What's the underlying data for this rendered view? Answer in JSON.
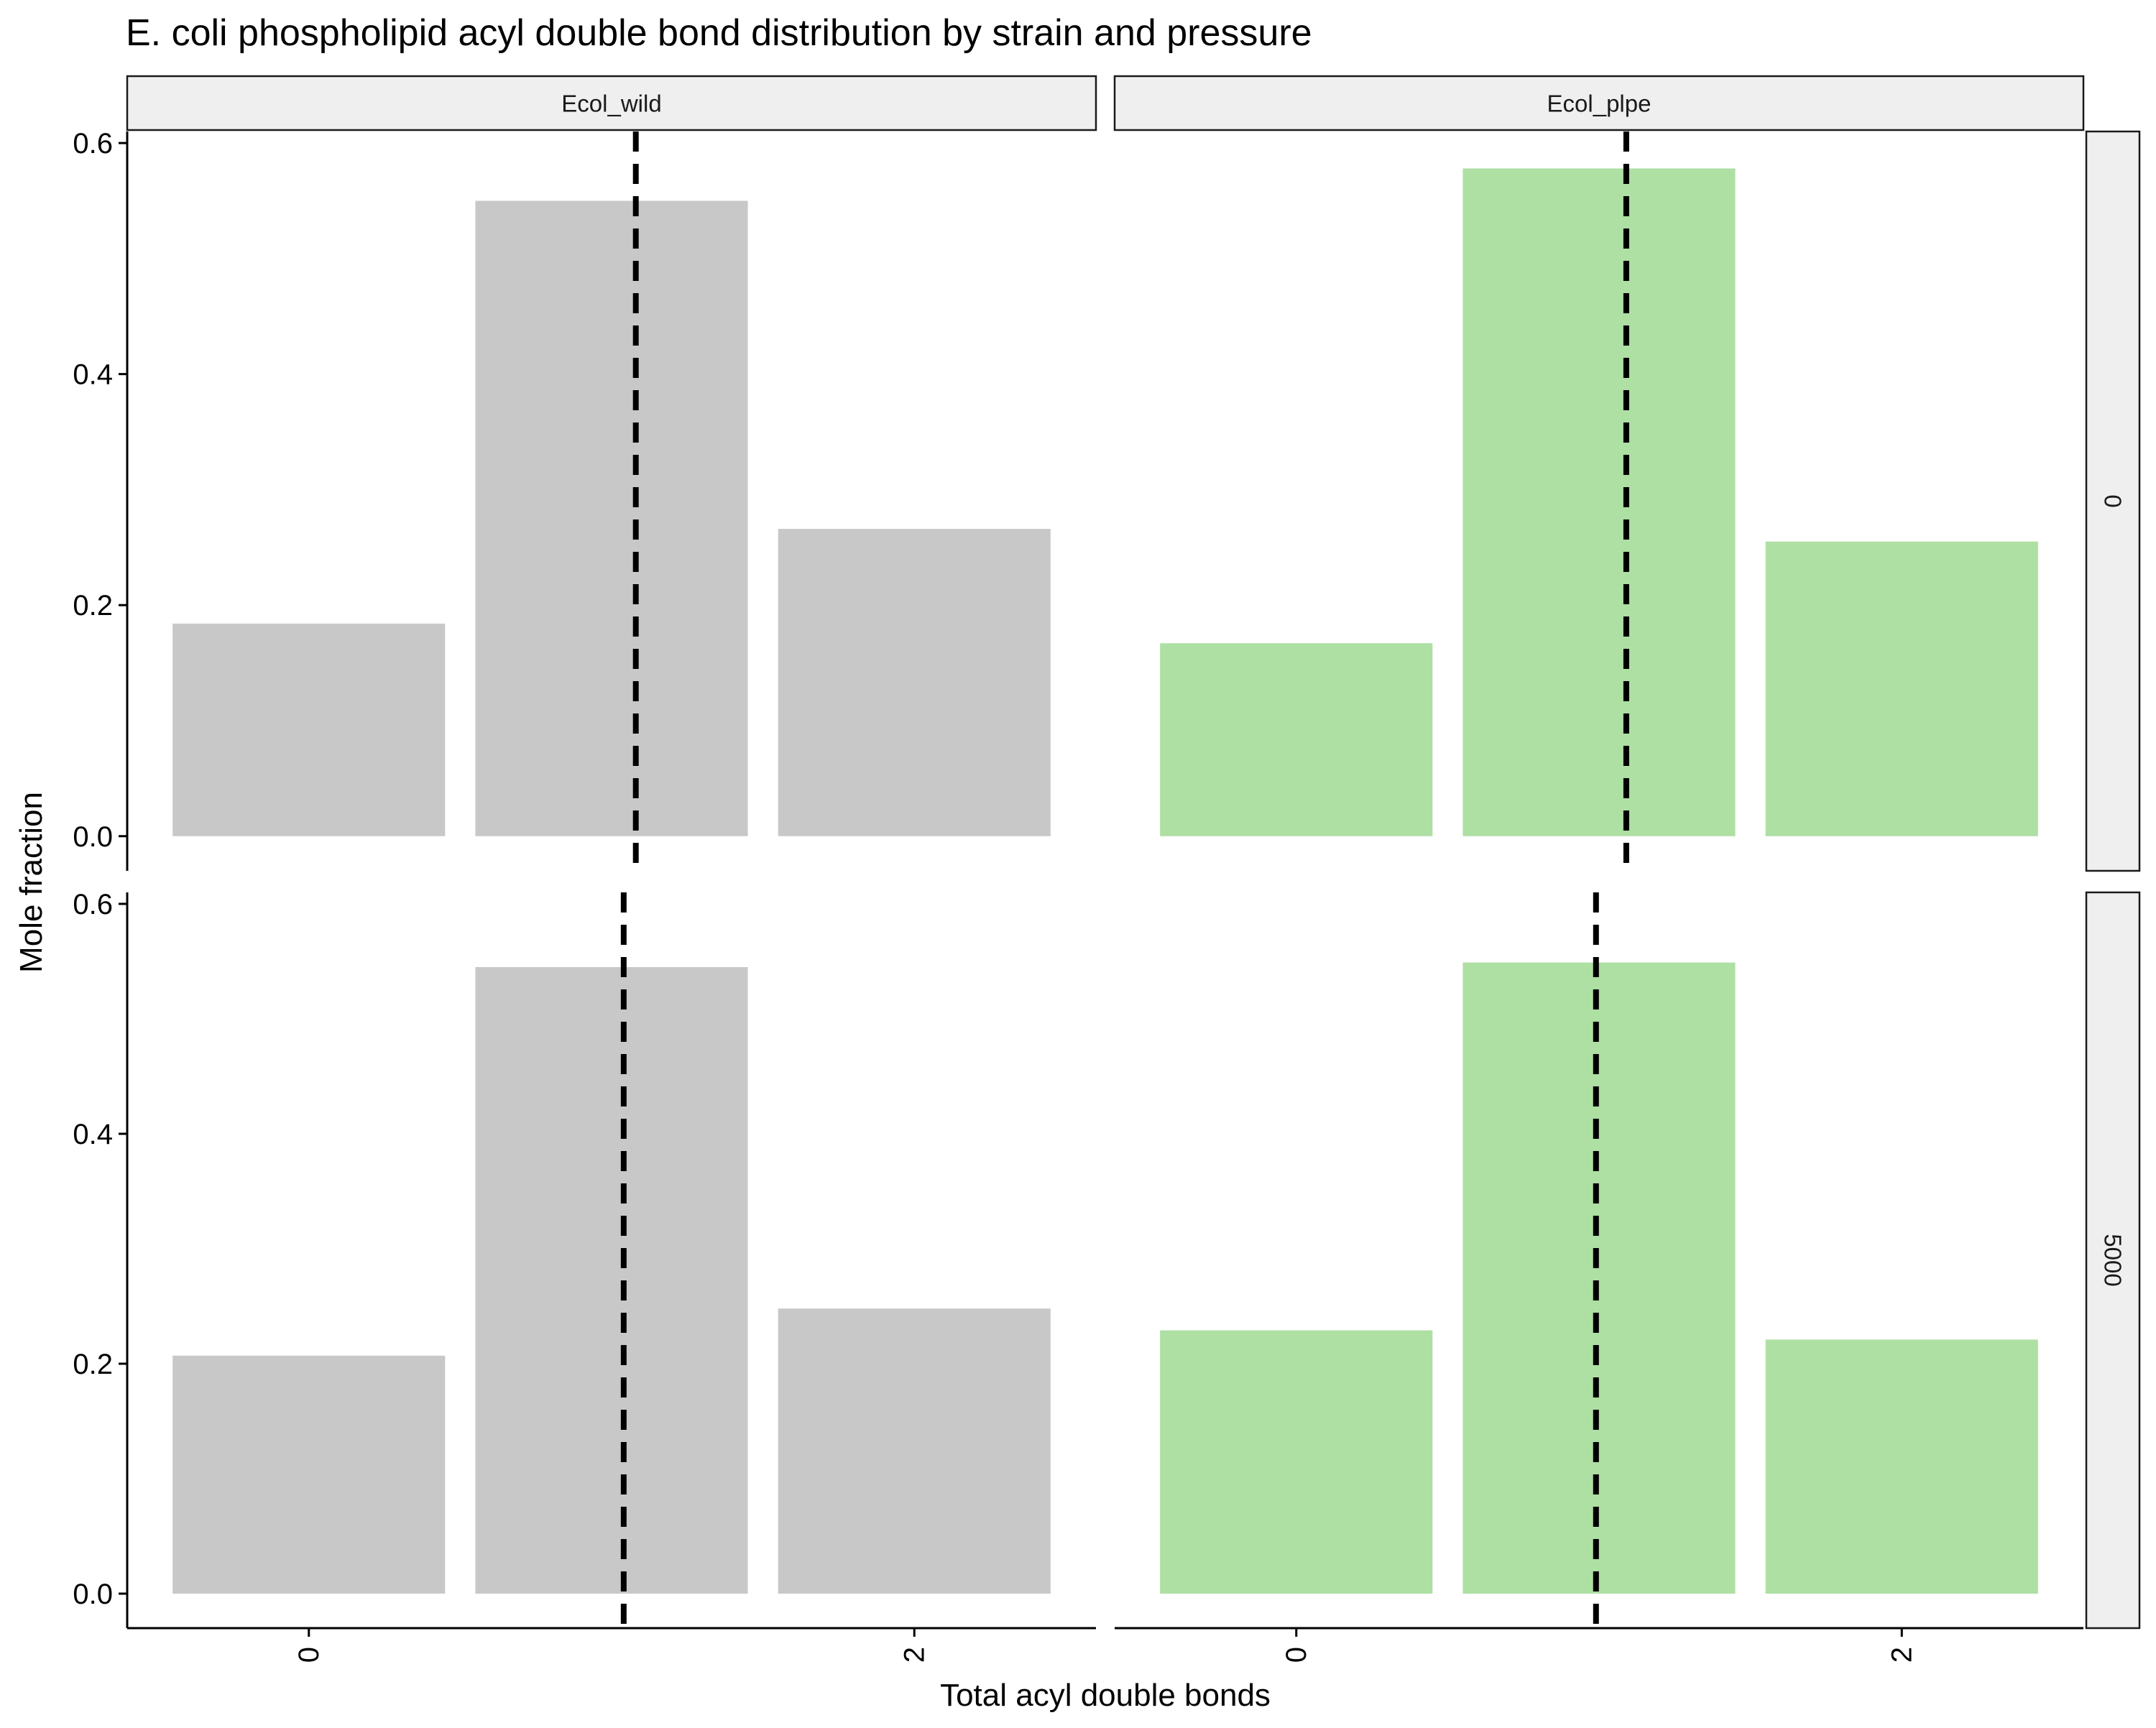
{
  "chart_data": {
    "type": "bar",
    "title": "E. coli phospholipid acyl double bond distribution by strain and pressure",
    "xlabel": "Total acyl double bonds",
    "ylabel": "Mole fraction",
    "ylim": [
      -0.03,
      0.61
    ],
    "y_ticks": [
      "0.0",
      "0.2",
      "0.4",
      "0.6"
    ],
    "x_ticks": [
      "0",
      "2"
    ],
    "x_categories": [
      0,
      1,
      2
    ],
    "column_facets": [
      "Ecol_wild",
      "Ecol_plpe"
    ],
    "row_facets": [
      "0",
      "5000"
    ],
    "colors": {
      "Ecol_wild": "#c8c8c8",
      "Ecol_plpe": "#aedfa3",
      "mean_line": "#000000",
      "strip_fill": "#efefef"
    },
    "panels": [
      {
        "strain": "Ecol_wild",
        "pressure": "0",
        "values": [
          0.184,
          0.55,
          0.266
        ],
        "mean_line_x": 1.08
      },
      {
        "strain": "Ecol_plpe",
        "pressure": "0",
        "values": [
          0.167,
          0.578,
          0.255
        ],
        "mean_line_x": 1.09
      },
      {
        "strain": "Ecol_wild",
        "pressure": "5000",
        "values": [
          0.207,
          0.545,
          0.248
        ],
        "mean_line_x": 1.04
      },
      {
        "strain": "Ecol_plpe",
        "pressure": "5000",
        "values": [
          0.229,
          0.549,
          0.221
        ],
        "mean_line_x": 0.99
      }
    ]
  }
}
